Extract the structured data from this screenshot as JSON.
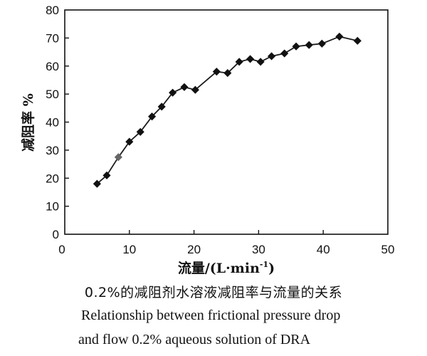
{
  "chart_data": {
    "type": "line",
    "ylabel": "减阻率 %",
    "xlabel": "流量/(L·min",
    "xlabel_superscript": "-1",
    "xlabel_close": ")",
    "xlim": [
      0,
      50
    ],
    "ylim": [
      0,
      80
    ],
    "x_ticks": [
      "0",
      "10",
      "20",
      "30",
      "40",
      "50"
    ],
    "y_ticks": [
      "0",
      "10",
      "20",
      "30",
      "40",
      "50",
      "60",
      "70",
      "80"
    ],
    "marker": "diamond",
    "grid": false,
    "series": [
      {
        "x": [
          5.0,
          6.5,
          8.3,
          10.0,
          11.7,
          13.5,
          15.0,
          16.7,
          18.5,
          20.2,
          23.5,
          25.2,
          27.0,
          28.7,
          30.3,
          32.0,
          34.0,
          35.8,
          37.8,
          39.8,
          42.5,
          45.3
        ],
        "y": [
          18,
          21,
          27.5,
          33,
          36.5,
          42,
          45.5,
          50.5,
          52.5,
          51.5,
          58,
          57.5,
          61.5,
          62.5,
          61.5,
          63.5,
          64.5,
          67,
          67.5,
          68,
          70.5,
          69
        ]
      }
    ],
    "colors": {
      "line": "#1a1a1a",
      "marker": "#111111",
      "highlight_marker": "#666666"
    }
  },
  "caption": {
    "cn": "0.2%的减阻剂水溶液减阻率与流量的关系",
    "en_line1": "Relationship between frictional pressure drop",
    "en_line2": "and flow 0.2% aqueous solution of DRA"
  }
}
